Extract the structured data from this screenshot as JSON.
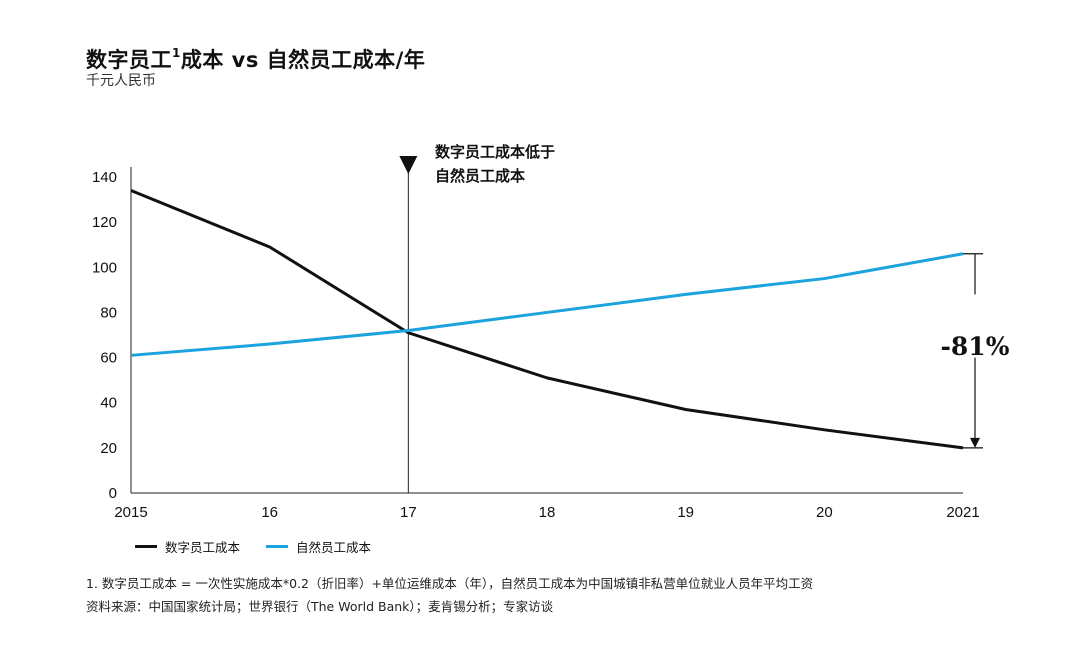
{
  "title_main": "数字员工",
  "title_sup": "1",
  "title_rest": "成本 vs 自然员工成本/年",
  "unit": "千元人民币",
  "annotation": {
    "line1": "数字员工成本低于",
    "line2": "自然员工成本"
  },
  "delta_label": "-81%",
  "legend": [
    {
      "label": "数字员工成本",
      "color": "#111111"
    },
    {
      "label": "自然员工成本",
      "color": "#1aa3dc"
    }
  ],
  "notes": [
    "1.  数字员工成本 = 一次性实施成本*0.2（折旧率）+单位运维成本（年），自然员工成本为中国城镇非私营单位就业人员年平均工资",
    "资料来源：中国国家统计局；世界银行（The World Bank）；麦肯锡分析；专家访谈"
  ],
  "chart_data": {
    "type": "line",
    "x": [
      "2015",
      "16",
      "17",
      "18",
      "19",
      "20",
      "2021"
    ],
    "ylim": [
      0,
      140
    ],
    "yticks": [
      0,
      20,
      40,
      60,
      80,
      100,
      120,
      140
    ],
    "series": [
      {
        "name": "数字员工成本",
        "color": "#111111",
        "values": [
          134,
          109,
          71,
          51,
          37,
          28,
          20
        ]
      },
      {
        "name": "自然员工成本",
        "color": "#1aa3dc",
        "values": [
          61,
          66,
          72,
          80,
          88,
          95,
          106
        ]
      }
    ],
    "marker_x": "17",
    "delta_label": "-81%"
  }
}
